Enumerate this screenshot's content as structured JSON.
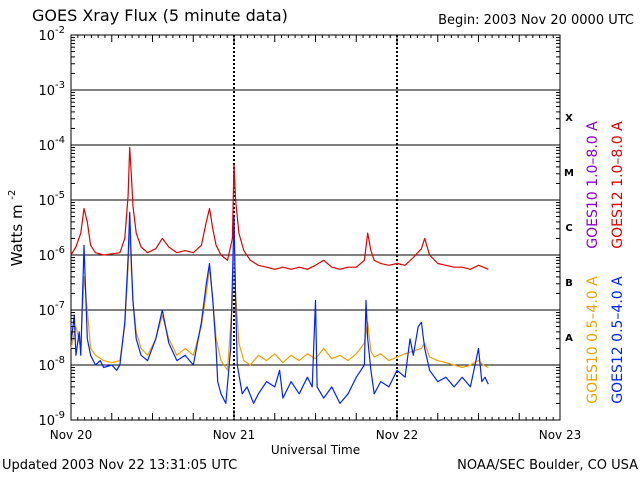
{
  "title": "GOES Xray Flux (5 minute data)",
  "begin_label": "Begin:  2003 Nov 20 0000 UTC",
  "footer": {
    "updated": "Updated 2003 Nov 22 13:31:05 UTC",
    "credit": "NOAA/SEC Boulder, CO USA"
  },
  "chart_data": {
    "type": "line",
    "title": "GOES Xray Flux (5 minute data)",
    "xlabel": "Universal Time",
    "ylabel": "Watts m",
    "ylabel_sup": "-2",
    "xlim_days": [
      0,
      3
    ],
    "ylim": [
      1e-09,
      0.01
    ],
    "yscale": "log",
    "y_ticks": [
      {
        "base": "10",
        "exp": "-9"
      },
      {
        "base": "10",
        "exp": "-8"
      },
      {
        "base": "10",
        "exp": "-7"
      },
      {
        "base": "10",
        "exp": "-6"
      },
      {
        "base": "10",
        "exp": "-5"
      },
      {
        "base": "10",
        "exp": "-4"
      },
      {
        "base": "10",
        "exp": "-3"
      },
      {
        "base": "10",
        "exp": "-2"
      }
    ],
    "x_ticks": [
      "Nov 20",
      "Nov 21",
      "Nov 22",
      "Nov 23"
    ],
    "flare_classes": [
      {
        "label": "A",
        "value": 1e-08
      },
      {
        "label": "B",
        "value": 1e-07
      },
      {
        "label": "C",
        "value": 1e-06
      },
      {
        "label": "M",
        "value": 1e-05
      },
      {
        "label": "X",
        "value": 0.0001
      }
    ],
    "legend": [
      {
        "label": "GOES10 1.0–8.0 A",
        "color": "#8800cc"
      },
      {
        "label": "GOES12 1.0–8.0 A",
        "color": "#e00000"
      },
      {
        "label": "GOES10 0.5–4.0 A",
        "color": "#f0a000"
      },
      {
        "label": "GOES12 0.5–4.0 A",
        "color": "#0022ff"
      }
    ],
    "series": [
      {
        "name": "GOES12 1.0-8.0 A",
        "color": "#e00000",
        "points": [
          [
            0.0,
            1e-06
          ],
          [
            0.03,
            1.4e-06
          ],
          [
            0.06,
            2.5e-06
          ],
          [
            0.08,
            7e-06
          ],
          [
            0.1,
            4e-06
          ],
          [
            0.12,
            1.5e-06
          ],
          [
            0.15,
            1.1e-06
          ],
          [
            0.2,
            1e-06
          ],
          [
            0.25,
            1.05e-06
          ],
          [
            0.3,
            1.1e-06
          ],
          [
            0.33,
            2e-06
          ],
          [
            0.35,
            1.2e-05
          ],
          [
            0.36,
            9e-05
          ],
          [
            0.37,
            3e-05
          ],
          [
            0.38,
            8e-06
          ],
          [
            0.4,
            2.5e-06
          ],
          [
            0.43,
            1.4e-06
          ],
          [
            0.47,
            1.1e-06
          ],
          [
            0.52,
            1.3e-06
          ],
          [
            0.56,
            2e-06
          ],
          [
            0.6,
            1.4e-06
          ],
          [
            0.65,
            1.1e-06
          ],
          [
            0.7,
            1.2e-06
          ],
          [
            0.75,
            1.1e-06
          ],
          [
            0.8,
            1.5e-06
          ],
          [
            0.83,
            4e-06
          ],
          [
            0.85,
            7e-06
          ],
          [
            0.87,
            3e-06
          ],
          [
            0.89,
            1.5e-06
          ],
          [
            0.92,
            1e-06
          ],
          [
            0.96,
            8e-07
          ],
          [
            0.99,
            2e-06
          ],
          [
            1.0,
            4.5e-05
          ],
          [
            1.01,
            1e-05
          ],
          [
            1.03,
            2.5e-06
          ],
          [
            1.06,
            1.2e-06
          ],
          [
            1.1,
            8e-07
          ],
          [
            1.15,
            6.5e-07
          ],
          [
            1.2,
            6e-07
          ],
          [
            1.25,
            5.5e-07
          ],
          [
            1.3,
            6e-07
          ],
          [
            1.35,
            5.5e-07
          ],
          [
            1.4,
            6e-07
          ],
          [
            1.45,
            5.5e-07
          ],
          [
            1.5,
            6.5e-07
          ],
          [
            1.55,
            8e-07
          ],
          [
            1.6,
            6e-07
          ],
          [
            1.65,
            5.5e-07
          ],
          [
            1.7,
            6e-07
          ],
          [
            1.75,
            6e-07
          ],
          [
            1.8,
            8e-07
          ],
          [
            1.82,
            2.5e-06
          ],
          [
            1.84,
            1.2e-06
          ],
          [
            1.86,
            8e-07
          ],
          [
            1.9,
            7e-07
          ],
          [
            1.95,
            6.5e-07
          ],
          [
            2.0,
            7e-07
          ],
          [
            2.05,
            6.5e-07
          ],
          [
            2.1,
            9e-07
          ],
          [
            2.15,
            1.3e-06
          ],
          [
            2.17,
            2e-06
          ],
          [
            2.2,
            1e-06
          ],
          [
            2.25,
            7e-07
          ],
          [
            2.3,
            6.5e-07
          ],
          [
            2.35,
            6e-07
          ],
          [
            2.4,
            6e-07
          ],
          [
            2.45,
            5.5e-07
          ],
          [
            2.5,
            6.5e-07
          ],
          [
            2.53,
            6e-07
          ],
          [
            2.56,
            5.5e-07
          ]
        ]
      },
      {
        "name": "GOES10 0.5-4.0 A",
        "color": "#f0a000",
        "points": [
          [
            0.0,
            2e-08
          ],
          [
            0.03,
            5e-08
          ],
          [
            0.06,
            2e-08
          ],
          [
            0.08,
            4e-07
          ],
          [
            0.1,
            1e-07
          ],
          [
            0.12,
            2e-08
          ],
          [
            0.15,
            1.5e-08
          ],
          [
            0.2,
            1.2e-08
          ],
          [
            0.25,
            1.1e-08
          ],
          [
            0.3,
            1.2e-08
          ],
          [
            0.33,
            5e-08
          ],
          [
            0.35,
            6e-07
          ],
          [
            0.36,
            3e-06
          ],
          [
            0.37,
            6e-07
          ],
          [
            0.38,
            1.5e-07
          ],
          [
            0.4,
            4e-08
          ],
          [
            0.43,
            2e-08
          ],
          [
            0.47,
            1.5e-08
          ],
          [
            0.52,
            3e-08
          ],
          [
            0.56,
            8e-08
          ],
          [
            0.6,
            3e-08
          ],
          [
            0.65,
            1.5e-08
          ],
          [
            0.7,
            2e-08
          ],
          [
            0.75,
            1.5e-08
          ],
          [
            0.8,
            5e-08
          ],
          [
            0.83,
            2e-07
          ],
          [
            0.85,
            6e-07
          ],
          [
            0.87,
            1.5e-07
          ],
          [
            0.89,
            3e-08
          ],
          [
            0.92,
            1.2e-08
          ],
          [
            0.96,
            8e-09
          ],
          [
            0.99,
            1.5e-07
          ],
          [
            1.0,
            2.5e-06
          ],
          [
            1.01,
            2e-07
          ],
          [
            1.03,
            2.5e-08
          ],
          [
            1.06,
            1.2e-08
          ],
          [
            1.1,
            1e-08
          ],
          [
            1.15,
            1.5e-08
          ],
          [
            1.2,
            1.2e-08
          ],
          [
            1.25,
            1.6e-08
          ],
          [
            1.3,
            1.1e-08
          ],
          [
            1.35,
            1.5e-08
          ],
          [
            1.4,
            1.2e-08
          ],
          [
            1.45,
            1.6e-08
          ],
          [
            1.5,
            1.3e-08
          ],
          [
            1.55,
            2e-08
          ],
          [
            1.6,
            1.3e-08
          ],
          [
            1.65,
            1.5e-08
          ],
          [
            1.7,
            1.2e-08
          ],
          [
            1.75,
            1.6e-08
          ],
          [
            1.8,
            2.5e-08
          ],
          [
            1.82,
            6e-08
          ],
          [
            1.84,
            1.8e-08
          ],
          [
            1.86,
            1.4e-08
          ],
          [
            1.9,
            1.6e-08
          ],
          [
            1.95,
            1.2e-08
          ],
          [
            2.0,
            1.4e-08
          ],
          [
            2.05,
            1.6e-08
          ],
          [
            2.1,
            1.8e-08
          ],
          [
            2.15,
            2e-08
          ],
          [
            2.17,
            2.5e-08
          ],
          [
            2.2,
            1.4e-08
          ],
          [
            2.25,
            1.2e-08
          ],
          [
            2.3,
            1.1e-08
          ],
          [
            2.35,
            1e-08
          ],
          [
            2.4,
            9e-09
          ],
          [
            2.45,
            1e-08
          ],
          [
            2.5,
            1.2e-08
          ],
          [
            2.53,
            1e-08
          ],
          [
            2.56,
            9e-09
          ]
        ]
      },
      {
        "name": "GOES12 0.5-4.0 A",
        "color": "#0022ff",
        "points": [
          [
            0.0,
            2.5e-08
          ],
          [
            0.02,
            8e-08
          ],
          [
            0.03,
            1.5e-08
          ],
          [
            0.05,
            4e-08
          ],
          [
            0.06,
            1.5e-08
          ],
          [
            0.08,
            1.5e-06
          ],
          [
            0.09,
            2e-07
          ],
          [
            0.1,
            3e-08
          ],
          [
            0.12,
            1.5e-08
          ],
          [
            0.15,
            1e-08
          ],
          [
            0.18,
            1.2e-08
          ],
          [
            0.2,
            9e-09
          ],
          [
            0.25,
            1e-08
          ],
          [
            0.28,
            8e-09
          ],
          [
            0.3,
            1e-08
          ],
          [
            0.33,
            6e-08
          ],
          [
            0.35,
            9e-07
          ],
          [
            0.36,
            6e-06
          ],
          [
            0.37,
            8e-07
          ],
          [
            0.38,
            1.5e-07
          ],
          [
            0.4,
            3e-08
          ],
          [
            0.43,
            1.5e-08
          ],
          [
            0.47,
            1.2e-08
          ],
          [
            0.52,
            3e-08
          ],
          [
            0.56,
            1e-07
          ],
          [
            0.6,
            2.5e-08
          ],
          [
            0.65,
            1.2e-08
          ],
          [
            0.7,
            1.5e-08
          ],
          [
            0.75,
            1e-08
          ],
          [
            0.8,
            6e-08
          ],
          [
            0.83,
            3e-07
          ],
          [
            0.85,
            7e-07
          ],
          [
            0.87,
            1.5e-07
          ],
          [
            0.89,
            2e-08
          ],
          [
            0.9,
            5e-09
          ],
          [
            0.92,
            3e-09
          ],
          [
            0.95,
            2e-09
          ],
          [
            0.98,
            2e-08
          ],
          [
            1.0,
            5e-06
          ],
          [
            1.01,
            1.5e-07
          ],
          [
            1.02,
            1e-08
          ],
          [
            1.05,
            3e-09
          ],
          [
            1.08,
            4e-09
          ],
          [
            1.12,
            2e-09
          ],
          [
            1.15,
            3e-09
          ],
          [
            1.2,
            5e-09
          ],
          [
            1.25,
            4e-09
          ],
          [
            1.28,
            8e-09
          ],
          [
            1.3,
            2.5e-09
          ],
          [
            1.35,
            5e-09
          ],
          [
            1.4,
            3e-09
          ],
          [
            1.45,
            6e-09
          ],
          [
            1.48,
            4e-09
          ],
          [
            1.5,
            1.5e-07
          ],
          [
            1.51,
            4e-09
          ],
          [
            1.55,
            2.5e-09
          ],
          [
            1.6,
            4e-09
          ],
          [
            1.65,
            2e-09
          ],
          [
            1.7,
            3e-09
          ],
          [
            1.75,
            6e-09
          ],
          [
            1.8,
            1e-08
          ],
          [
            1.81,
            1.5e-07
          ],
          [
            1.82,
            3e-08
          ],
          [
            1.84,
            8e-09
          ],
          [
            1.86,
            3e-09
          ],
          [
            1.9,
            5e-09
          ],
          [
            1.95,
            4e-09
          ],
          [
            2.0,
            8e-09
          ],
          [
            2.05,
            6e-09
          ],
          [
            2.08,
            3e-08
          ],
          [
            2.1,
            1.5e-08
          ],
          [
            2.13,
            5e-08
          ],
          [
            2.15,
            6e-08
          ],
          [
            2.17,
            2e-08
          ],
          [
            2.2,
            8e-09
          ],
          [
            2.25,
            5e-09
          ],
          [
            2.3,
            6e-09
          ],
          [
            2.35,
            4e-09
          ],
          [
            2.4,
            6e-09
          ],
          [
            2.45,
            4e-09
          ],
          [
            2.5,
            2e-08
          ],
          [
            2.52,
            5e-09
          ],
          [
            2.54,
            6e-09
          ],
          [
            2.56,
            4.5e-09
          ]
        ]
      }
    ]
  }
}
